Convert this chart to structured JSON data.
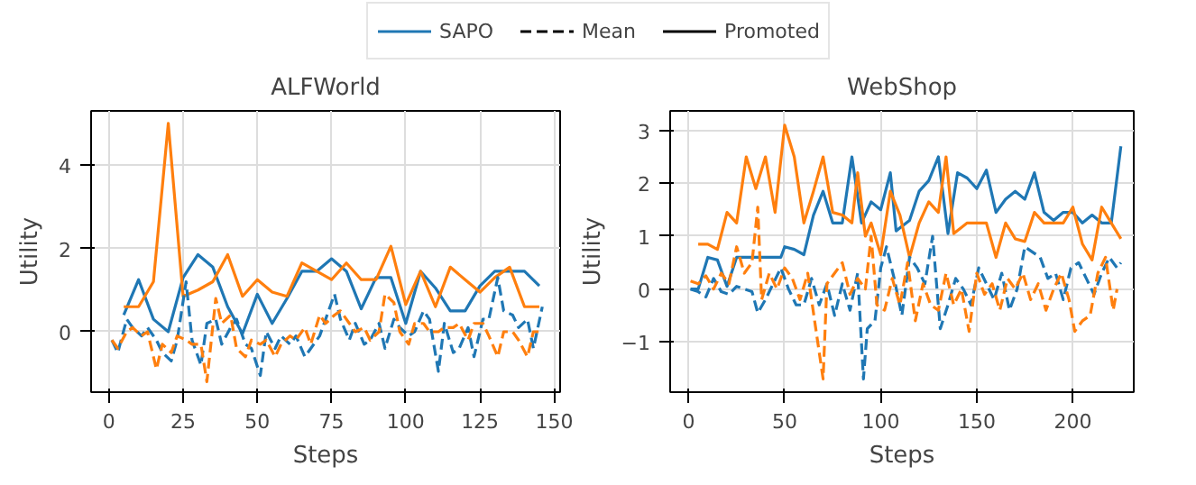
{
  "chart_data": [
    {
      "type": "line",
      "title": "ALFWorld",
      "xlabel": "Steps",
      "ylabel": "Utility",
      "xlim": [
        -6,
        152
      ],
      "ylim": [
        -1.45,
        5.3
      ],
      "xticks": [
        0,
        25,
        50,
        75,
        100,
        125,
        150
      ],
      "yticks": [
        0,
        2,
        4
      ],
      "grid": true,
      "legend": "top",
      "series": [
        {
          "name": "SAPO",
          "color": "#1f77b4",
          "line_style": "solid",
          "x": [
            5,
            10,
            15,
            20,
            25,
            30,
            35,
            40,
            45,
            50,
            55,
            60,
            65,
            70,
            75,
            80,
            85,
            90,
            95,
            100,
            105,
            110,
            115,
            120,
            125,
            130,
            135,
            140,
            145
          ],
          "values": [
            0.4,
            1.25,
            0.3,
            0.0,
            1.3,
            1.85,
            1.55,
            0.6,
            -0.05,
            0.9,
            0.2,
            0.8,
            1.45,
            1.45,
            1.75,
            1.45,
            0.55,
            1.3,
            1.3,
            0.2,
            1.45,
            1.05,
            0.5,
            0.5,
            1.1,
            1.45,
            1.45,
            1.45,
            1.1
          ]
        },
        {
          "color": "#ff7f0e",
          "line_style": "solid",
          "x": [
            5,
            10,
            15,
            20,
            25,
            30,
            35,
            40,
            45,
            50,
            55,
            60,
            65,
            70,
            75,
            80,
            85,
            90,
            95,
            100,
            105,
            110,
            115,
            120,
            125,
            130,
            135,
            140,
            145
          ],
          "values": [
            0.6,
            0.6,
            1.2,
            5.0,
            0.85,
            1.0,
            1.2,
            1.85,
            0.85,
            1.25,
            0.95,
            0.85,
            1.65,
            1.45,
            1.25,
            1.65,
            1.25,
            1.25,
            2.05,
            0.65,
            1.45,
            0.6,
            1.55,
            1.25,
            0.95,
            1.3,
            1.55,
            0.6,
            0.6
          ]
        },
        {
          "color": "#1f77b4",
          "line_style": "dashed",
          "x": [
            1,
            3,
            6,
            8,
            11,
            13,
            16,
            18,
            21,
            23,
            26,
            28,
            31,
            33,
            36,
            38,
            41,
            43,
            46,
            48,
            51,
            53,
            56,
            58,
            61,
            63,
            66,
            68,
            71,
            73,
            76,
            78,
            81,
            83,
            86,
            88,
            91,
            93,
            96,
            98,
            101,
            103,
            106,
            108,
            111,
            113,
            116,
            118,
            121,
            123,
            126,
            128,
            131,
            133,
            136,
            138,
            141,
            143,
            146
          ],
          "values": [
            -0.2,
            -0.5,
            0.3,
            0.1,
            -0.1,
            0.1,
            -0.2,
            -0.5,
            -0.7,
            -0.2,
            1.2,
            -0.2,
            -0.8,
            0.2,
            0.3,
            -0.3,
            0.1,
            0.3,
            -0.3,
            -0.4,
            -1.05,
            0.0,
            -0.4,
            -0.1,
            -0.3,
            -0.1,
            -0.6,
            -0.4,
            -0.1,
            0.3,
            0.9,
            0.3,
            -0.2,
            0.2,
            -0.3,
            -0.2,
            0.2,
            -0.4,
            0.3,
            0.1,
            -0.1,
            0.0,
            0.5,
            0.3,
            -0.95,
            0.2,
            -0.5,
            -0.4,
            0.1,
            -0.6,
            0.3,
            0.3,
            1.3,
            0.5,
            0.4,
            0.1,
            0.3,
            -0.4,
            0.6
          ]
        },
        {
          "color": "#ff7f0e",
          "line_style": "dashed",
          "x": [
            1,
            3,
            6,
            8,
            11,
            13,
            16,
            18,
            21,
            23,
            26,
            28,
            31,
            33,
            36,
            38,
            41,
            43,
            46,
            48,
            51,
            53,
            56,
            58,
            61,
            63,
            66,
            68,
            71,
            73,
            76,
            78,
            81,
            83,
            86,
            88,
            91,
            93,
            96,
            98,
            101,
            103,
            106,
            108,
            111,
            113,
            116,
            118,
            121,
            123,
            126,
            128,
            131,
            133,
            136,
            138,
            141,
            143,
            146
          ],
          "values": [
            -0.2,
            -0.4,
            0.0,
            0.1,
            -0.1,
            0.0,
            -0.9,
            -0.3,
            -0.5,
            -0.1,
            -0.2,
            -0.3,
            -0.3,
            -1.2,
            0.8,
            0.2,
            0.4,
            -0.4,
            -0.6,
            -0.2,
            -0.3,
            -0.2,
            -0.6,
            -0.3,
            -0.1,
            -0.2,
            0.1,
            -0.3,
            0.4,
            0.2,
            0.4,
            0.5,
            0.2,
            0.0,
            0.1,
            -0.2,
            0.0,
            0.9,
            0.7,
            0.0,
            -0.3,
            0.2,
            0.2,
            0.0,
            0.0,
            0.1,
            0.1,
            0.2,
            -0.2,
            0.2,
            0.2,
            -0.1,
            -0.6,
            0.0,
            0.0,
            -0.2,
            -0.6,
            0.0,
            0.0
          ]
        },
        {
          "name": "Mean",
          "color": "#000000",
          "line_style": "dashed"
        },
        {
          "name": "Promoted",
          "color": "#000000",
          "line_style": "solid"
        }
      ]
    },
    {
      "type": "line",
      "title": "WebShop",
      "xlabel": "Steps",
      "ylabel": "Utility",
      "xlim": [
        -9.6,
        231.7
      ],
      "ylim": [
        -1.95,
        3.37
      ],
      "xticks": [
        0,
        50,
        100,
        150,
        200
      ],
      "yticks": [
        {
          "value": -1,
          "label": "−1"
        },
        0,
        1,
        2,
        3
      ],
      "grid": true,
      "series": [
        {
          "color": "#1f77b4",
          "line_style": "solid",
          "x": [
            1,
            5,
            10,
            15,
            20,
            25,
            30,
            35,
            40,
            45,
            48,
            50,
            55,
            60,
            65,
            70,
            75,
            80,
            85,
            90,
            95,
            100,
            105,
            108,
            115,
            120,
            125,
            130,
            135,
            140,
            145,
            150,
            155,
            160,
            165,
            170,
            175,
            180,
            185,
            190,
            195,
            200,
            205,
            210,
            215,
            220,
            225
          ],
          "values": [
            0.0,
            0.0,
            0.6,
            0.55,
            0.05,
            0.6,
            0.6,
            0.6,
            0.6,
            0.6,
            0.6,
            0.8,
            0.75,
            0.65,
            1.4,
            1.85,
            1.25,
            1.25,
            2.5,
            1.25,
            1.65,
            1.5,
            2.2,
            1.1,
            1.3,
            1.85,
            2.05,
            2.5,
            1.05,
            2.2,
            2.1,
            1.9,
            2.25,
            1.45,
            1.7,
            1.85,
            1.7,
            2.2,
            1.45,
            1.3,
            1.45,
            1.45,
            1.25,
            1.4,
            1.25,
            1.25,
            2.7
          ]
        },
        {
          "color": "#ff7f0e",
          "line_style": "solid",
          "x": [
            5,
            10,
            15,
            20,
            25,
            30,
            35,
            40,
            45,
            50,
            55,
            60,
            65,
            70,
            75,
            80,
            85,
            88,
            92,
            95,
            100,
            105,
            110,
            115,
            120,
            125,
            130,
            134,
            138,
            145,
            150,
            155,
            160,
            165,
            170,
            175,
            180,
            185,
            190,
            195,
            200,
            205,
            210,
            215,
            220,
            225
          ],
          "values": [
            0.85,
            0.85,
            0.75,
            1.45,
            1.25,
            2.5,
            1.9,
            2.5,
            1.45,
            3.1,
            2.5,
            1.25,
            1.85,
            2.5,
            1.45,
            1.4,
            1.25,
            2.2,
            1.0,
            1.25,
            0.65,
            1.85,
            1.4,
            0.6,
            1.25,
            1.65,
            1.45,
            2.5,
            1.05,
            1.25,
            1.25,
            1.25,
            0.6,
            1.25,
            0.95,
            0.9,
            1.45,
            1.25,
            1.25,
            1.25,
            1.55,
            0.85,
            0.55,
            1.55,
            1.25,
            0.95
          ]
        },
        {
          "color": "#1f77b4",
          "line_style": "dashed",
          "x": [
            1,
            5,
            9,
            13,
            17,
            21,
            25,
            29,
            33,
            36,
            40,
            44,
            48,
            52,
            56,
            60,
            64,
            68,
            72,
            76,
            80,
            84,
            88,
            91,
            93,
            97,
            100,
            103,
            107,
            111,
            115,
            119,
            123,
            127,
            131,
            135,
            139,
            143,
            147,
            151,
            155,
            159,
            163,
            167,
            171,
            175,
            179,
            183,
            187,
            191,
            195,
            199,
            203,
            207,
            211,
            215,
            219,
            223,
            225
          ],
          "values": [
            0.0,
            -0.05,
            -0.15,
            0.2,
            -0.05,
            -0.1,
            0.05,
            0.0,
            -0.05,
            -0.45,
            -0.2,
            0.1,
            0.4,
            0.0,
            -0.3,
            -0.3,
            0.2,
            -0.3,
            0.1,
            -0.5,
            0.1,
            -0.4,
            0.3,
            -1.7,
            -0.75,
            -0.6,
            0.4,
            0.8,
            0.2,
            -0.5,
            0.6,
            0.4,
            0.1,
            1.0,
            -0.75,
            -0.3,
            0.2,
            0.0,
            -0.3,
            0.4,
            0.1,
            -0.2,
            0.3,
            -0.4,
            0.0,
            0.8,
            0.7,
            0.6,
            0.2,
            0.3,
            -0.2,
            0.4,
            0.5,
            0.2,
            -0.1,
            0.3,
            0.6,
            0.4,
            0.5
          ]
        },
        {
          "color": "#ff7f0e",
          "line_style": "dashed",
          "x": [
            1,
            5,
            9,
            13,
            17,
            21,
            25,
            29,
            33,
            36,
            38,
            42,
            46,
            50,
            54,
            58,
            62,
            66,
            70,
            72,
            76,
            80,
            84,
            88,
            92,
            95,
            98,
            102,
            106,
            110,
            114,
            118,
            122,
            126,
            130,
            134,
            138,
            142,
            146,
            150,
            154,
            158,
            162,
            166,
            170,
            174,
            178,
            182,
            186,
            190,
            194,
            198,
            201,
            205,
            209,
            213,
            217,
            221,
            223
          ],
          "values": [
            0.15,
            0.1,
            0.25,
            0.0,
            0.3,
            0.1,
            0.8,
            0.3,
            0.5,
            1.55,
            -0.2,
            0.3,
            0.0,
            0.4,
            0.2,
            -0.2,
            0.3,
            -0.7,
            -1.7,
            0.1,
            0.3,
            0.5,
            -0.1,
            0.2,
            0.0,
            1.0,
            -0.3,
            -0.4,
            0.2,
            -0.3,
            0.5,
            -0.6,
            0.1,
            -0.3,
            -0.4,
            0.3,
            -0.3,
            0.0,
            -0.8,
            0.3,
            -0.1,
            0.1,
            -0.4,
            0.2,
            0.0,
            0.3,
            -0.2,
            0.1,
            -0.4,
            0.0,
            0.3,
            -0.2,
            -0.8,
            -0.6,
            -0.5,
            0.3,
            0.6,
            -0.4,
            0.0
          ]
        }
      ]
    }
  ]
}
